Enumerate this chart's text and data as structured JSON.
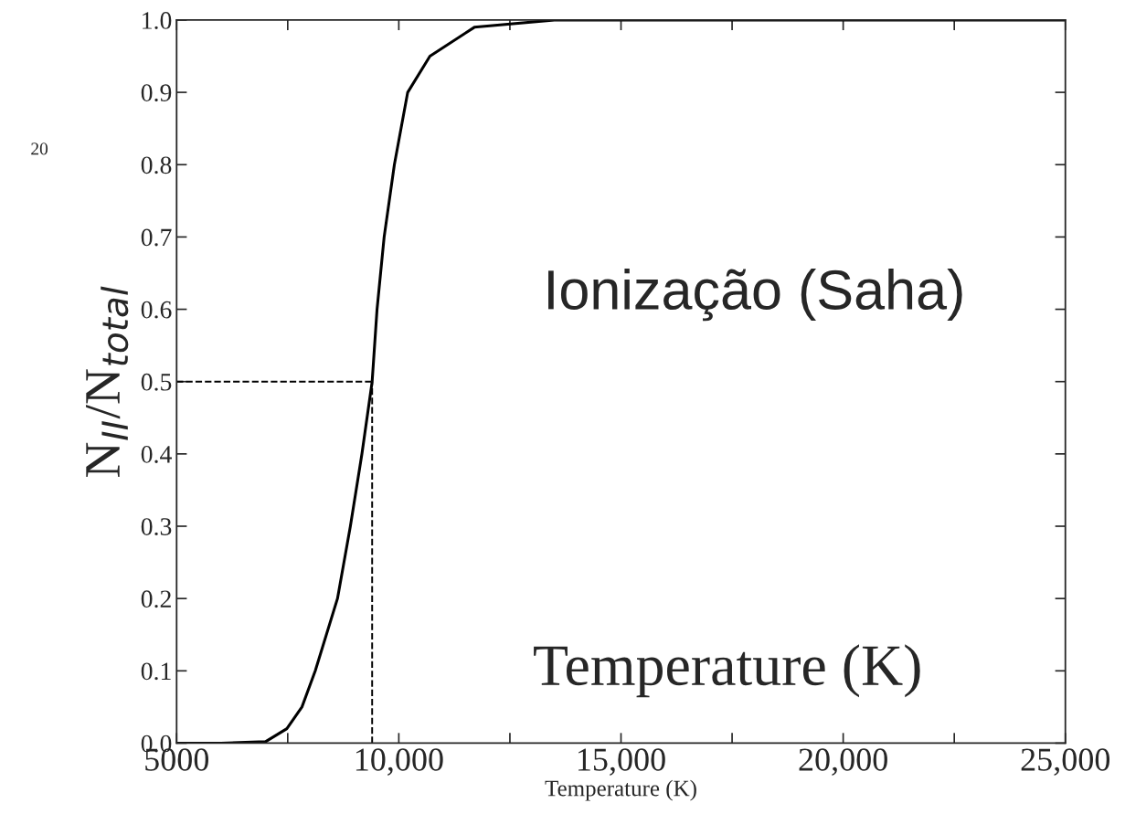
{
  "chart_data": {
    "type": "line",
    "xlabel": "Temperature (K)",
    "ylabel": "N$_{II}$/N$_{total}$",
    "x": [
      5000,
      6000,
      7000,
      7480,
      7820,
      8120,
      8620,
      8910,
      9170,
      9400,
      9510,
      9670,
      9900,
      10200,
      10700,
      11700,
      13500,
      15000,
      20000,
      25000
    ],
    "series": [
      {
        "color": "#000000",
        "values": [
          0,
          0,
          0.002,
          0.02,
          0.05,
          0.1,
          0.2,
          0.3,
          0.4,
          0.5,
          0.6,
          0.7,
          0.8,
          0.9,
          0.95,
          0.99,
          1.0,
          1.0,
          1.0,
          1.0
        ]
      }
    ],
    "xlim": [
      5000,
      25000
    ],
    "xticks": [
      {
        "value": 5000,
        "label": "5000"
      },
      {
        "value": 7500,
        "label": null
      },
      {
        "value": 10000,
        "label": "10,000"
      },
      {
        "value": 12500,
        "label": null
      },
      {
        "value": 15000,
        "label": "15,000"
      },
      {
        "value": 17500,
        "label": null
      },
      {
        "value": 20000,
        "label": "20,000"
      },
      {
        "value": 22500,
        "label": null
      },
      {
        "value": 25000,
        "label": "25,000"
      }
    ],
    "ylim": [
      0,
      1
    ],
    "yticks": [
      {
        "value": 0,
        "label": "0.0"
      },
      0.1,
      0.2,
      0.3,
      0.4,
      0.5,
      0.6,
      0.7,
      0.8,
      0.9,
      {
        "value": 1,
        "label": "1.0"
      }
    ],
    "ref_lines": [
      {
        "axis": "y",
        "value": 0.5,
        "line_style": "dashed",
        "color": "#000000"
      },
      {
        "axis": "x",
        "value": 9400,
        "line_style": "dashed",
        "color": "#000000"
      }
    ],
    "grid": false,
    "legend": false,
    "marker": "none",
    "line_style": "solid",
    "annotations": [
      "Ionização (Saha)",
      "Temperature (K)",
      "20"
    ]
  }
}
